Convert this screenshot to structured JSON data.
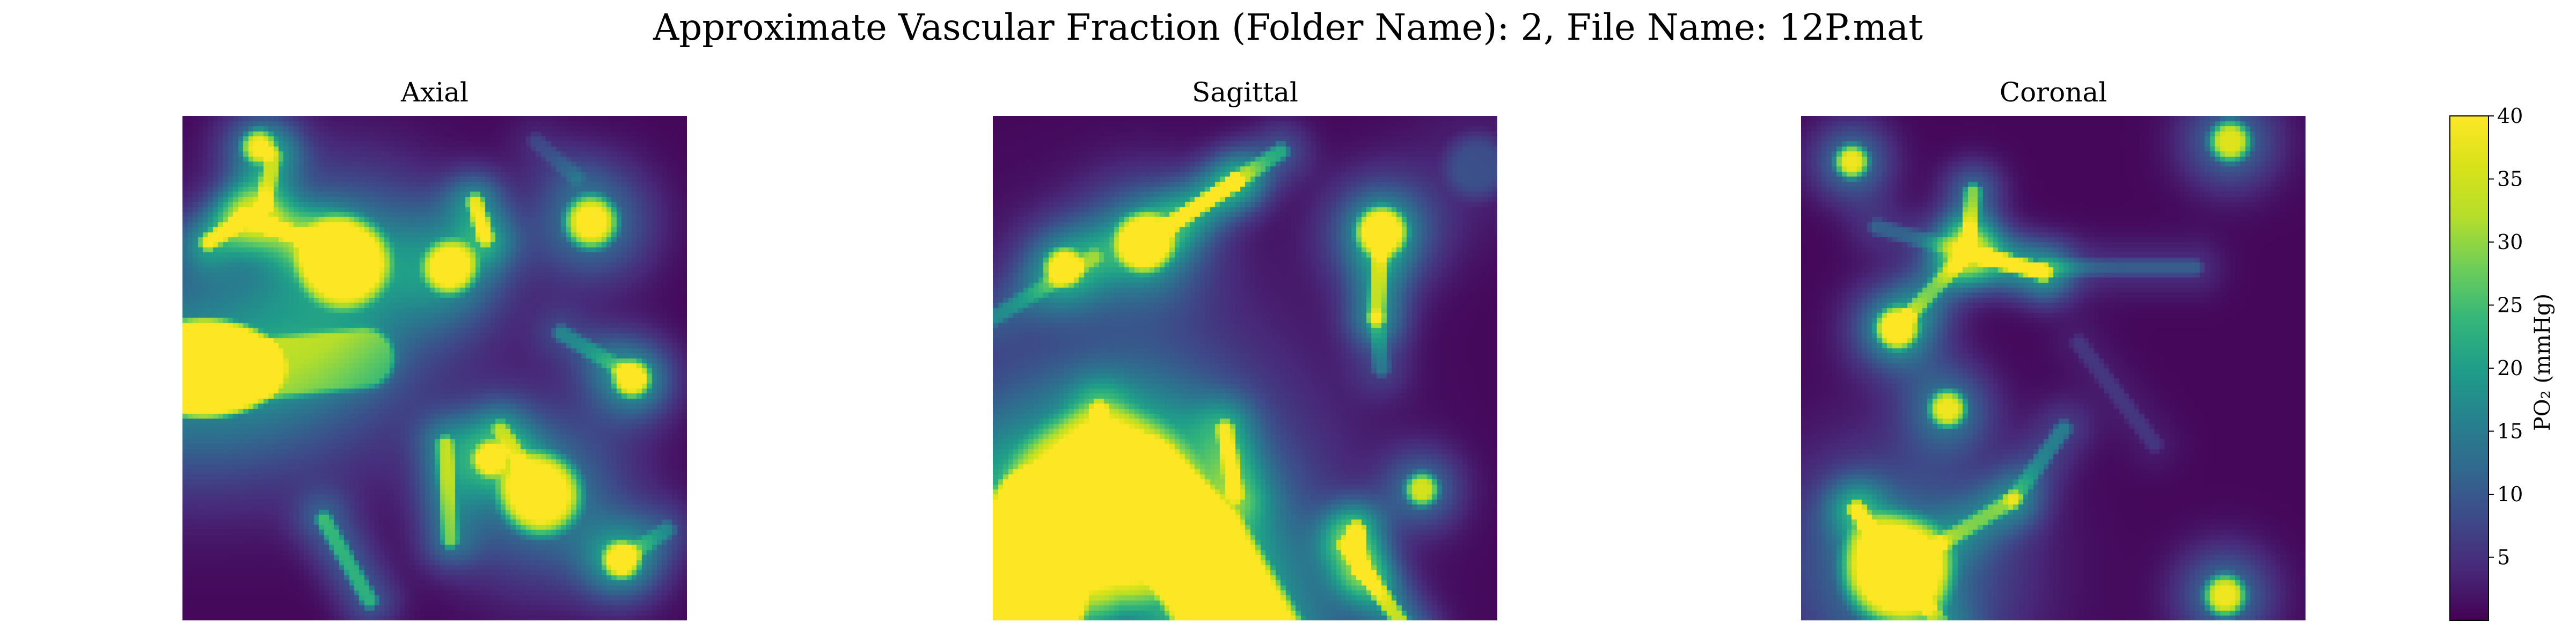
{
  "figure": {
    "suptitle": "Approximate Vascular Fraction (Folder Name): 2, File Name: 12P.mat"
  },
  "chart_data": [
    {
      "type": "heatmap",
      "title": "Axial",
      "colormap": "viridis",
      "vmin": 0,
      "vmax": 40,
      "xlabel": "",
      "ylabel": "",
      "units": "normalized image coordinates [0,1]; intensity = PO2 (mmHg), saturates at 40",
      "features": [
        {
          "shape": "ellipse",
          "cx": 0.04,
          "cy": 0.5,
          "rx": 0.14,
          "ry": 0.085,
          "value": 40
        },
        {
          "shape": "tail",
          "x1": 0.17,
          "y1": 0.5,
          "x2": 0.36,
          "y2": 0.48,
          "value": 14
        },
        {
          "shape": "blob",
          "cx": 0.32,
          "cy": 0.29,
          "r": 0.04,
          "value": 40
        },
        {
          "shape": "segment",
          "x1": 0.12,
          "y1": 0.2,
          "x2": 0.29,
          "y2": 0.26,
          "value": 35
        },
        {
          "shape": "segment",
          "x1": 0.29,
          "y1": 0.26,
          "x2": 0.33,
          "y2": 0.29,
          "value": 35
        },
        {
          "shape": "segment",
          "x1": 0.05,
          "y1": 0.25,
          "x2": 0.13,
          "y2": 0.2,
          "value": 30
        },
        {
          "shape": "segment",
          "x1": 0.18,
          "y1": 0.08,
          "x2": 0.16,
          "y2": 0.18,
          "value": 22
        },
        {
          "shape": "blob",
          "cx": 0.15,
          "cy": 0.06,
          "r": 0.012,
          "value": 32
        },
        {
          "shape": "blob",
          "cx": 0.53,
          "cy": 0.3,
          "r": 0.022,
          "value": 38
        },
        {
          "shape": "blob",
          "cx": 0.81,
          "cy": 0.21,
          "r": 0.022,
          "value": 40
        },
        {
          "shape": "segment",
          "x1": 0.58,
          "y1": 0.17,
          "x2": 0.6,
          "y2": 0.24,
          "value": 32
        },
        {
          "shape": "segment",
          "x1": 0.75,
          "y1": 0.43,
          "x2": 0.9,
          "y2": 0.52,
          "value": 14
        },
        {
          "shape": "blob",
          "cx": 0.89,
          "cy": 0.52,
          "r": 0.014,
          "value": 38
        },
        {
          "shape": "blob",
          "cx": 0.71,
          "cy": 0.75,
          "r": 0.036,
          "value": 40
        },
        {
          "shape": "segment",
          "x1": 0.63,
          "y1": 0.62,
          "x2": 0.71,
          "y2": 0.75,
          "value": 18
        },
        {
          "shape": "segment",
          "x1": 0.52,
          "y1": 0.65,
          "x2": 0.53,
          "y2": 0.84,
          "value": 24
        },
        {
          "shape": "blob",
          "cx": 0.61,
          "cy": 0.68,
          "r": 0.012,
          "value": 36
        },
        {
          "shape": "segment",
          "x1": 0.28,
          "y1": 0.8,
          "x2": 0.37,
          "y2": 0.96,
          "value": 22
        },
        {
          "shape": "blob",
          "cx": 0.87,
          "cy": 0.88,
          "r": 0.014,
          "value": 38
        },
        {
          "shape": "segment",
          "x1": 0.87,
          "y1": 0.88,
          "x2": 0.96,
          "y2": 0.82,
          "value": 12
        },
        {
          "shape": "segment",
          "x1": 0.7,
          "y1": 0.05,
          "x2": 0.78,
          "y2": 0.12,
          "value": 6
        }
      ]
    },
    {
      "type": "heatmap",
      "title": "Sagittal",
      "colormap": "viridis",
      "vmin": 0,
      "vmax": 40,
      "xlabel": "",
      "ylabel": "",
      "units": "normalized image coordinates [0,1]; intensity = PO2 (mmHg), saturates at 40",
      "features": [
        {
          "shape": "arc",
          "points": [
            [
              0.06,
              1.04
            ],
            [
              0.1,
              0.8
            ],
            [
              0.28,
              0.74
            ],
            [
              0.4,
              0.86
            ],
            [
              0.52,
              1.06
            ]
          ],
          "width": 0.17,
          "value": 40
        },
        {
          "shape": "blob",
          "cx": 0.22,
          "cy": 0.78,
          "r": 0.09,
          "value": 40
        },
        {
          "shape": "segment",
          "x1": 0.21,
          "y1": 0.58,
          "x2": 0.22,
          "y2": 0.72,
          "value": 24
        },
        {
          "shape": "segment",
          "x1": 0.46,
          "y1": 0.62,
          "x2": 0.48,
          "y2": 0.75,
          "value": 26
        },
        {
          "shape": "segment",
          "x1": 0.3,
          "y1": 0.25,
          "x2": 0.48,
          "y2": 0.13,
          "value": 36
        },
        {
          "shape": "segment",
          "x1": 0.48,
          "y1": 0.13,
          "x2": 0.57,
          "y2": 0.07,
          "value": 20
        },
        {
          "shape": "blob",
          "cx": 0.3,
          "cy": 0.25,
          "r": 0.024,
          "value": 40
        },
        {
          "shape": "segment",
          "x1": 0.0,
          "y1": 0.4,
          "x2": 0.2,
          "y2": 0.28,
          "value": 12
        },
        {
          "shape": "blob",
          "cx": 0.14,
          "cy": 0.3,
          "r": 0.014,
          "value": 38
        },
        {
          "shape": "blob",
          "cx": 0.77,
          "cy": 0.23,
          "r": 0.02,
          "value": 40
        },
        {
          "shape": "segment",
          "x1": 0.77,
          "y1": 0.23,
          "x2": 0.76,
          "y2": 0.4,
          "value": 26
        },
        {
          "shape": "segment",
          "x1": 0.76,
          "y1": 0.4,
          "x2": 0.77,
          "y2": 0.5,
          "value": 12
        },
        {
          "shape": "segment",
          "x1": 0.7,
          "y1": 0.85,
          "x2": 0.82,
          "y2": 1.02,
          "value": 30
        },
        {
          "shape": "segment",
          "x1": 0.72,
          "y1": 0.82,
          "x2": 0.73,
          "y2": 0.9,
          "value": 36
        },
        {
          "shape": "blob",
          "cx": 0.85,
          "cy": 0.74,
          "r": 0.012,
          "value": 34
        },
        {
          "shape": "blob",
          "cx": 0.96,
          "cy": 0.1,
          "r": 0.03,
          "value": 8
        }
      ]
    },
    {
      "type": "heatmap",
      "title": "Coronal",
      "colormap": "viridis",
      "vmin": 0,
      "vmax": 40,
      "xlabel": "",
      "ylabel": "",
      "units": "normalized image coordinates [0,1]; intensity = PO2 (mmHg), saturates at 40",
      "features": [
        {
          "shape": "segment",
          "x1": 0.33,
          "y1": 0.27,
          "x2": 0.48,
          "y2": 0.31,
          "value": 40
        },
        {
          "shape": "segment",
          "x1": 0.33,
          "y1": 0.27,
          "x2": 0.34,
          "y2": 0.15,
          "value": 28
        },
        {
          "shape": "segment",
          "x1": 0.33,
          "y1": 0.27,
          "x2": 0.19,
          "y2": 0.42,
          "value": 22
        },
        {
          "shape": "segment",
          "x1": 0.48,
          "y1": 0.3,
          "x2": 0.78,
          "y2": 0.3,
          "value": 10
        },
        {
          "shape": "segment",
          "x1": 0.33,
          "y1": 0.27,
          "x2": 0.15,
          "y2": 0.22,
          "value": 10
        },
        {
          "shape": "blob",
          "cx": 0.19,
          "cy": 0.42,
          "r": 0.016,
          "value": 38
        },
        {
          "shape": "blob",
          "cx": 0.1,
          "cy": 0.09,
          "r": 0.012,
          "value": 38
        },
        {
          "shape": "blob",
          "cx": 0.85,
          "cy": 0.05,
          "r": 0.016,
          "value": 36
        },
        {
          "shape": "blob",
          "cx": 0.29,
          "cy": 0.58,
          "r": 0.014,
          "value": 36
        },
        {
          "shape": "blob",
          "cx": 0.19,
          "cy": 0.9,
          "r": 0.05,
          "value": 40
        },
        {
          "shape": "segment",
          "x1": 0.11,
          "y1": 0.78,
          "x2": 0.19,
          "y2": 0.9,
          "value": 36
        },
        {
          "shape": "segment",
          "x1": 0.19,
          "y1": 0.9,
          "x2": 0.42,
          "y2": 0.76,
          "value": 20
        },
        {
          "shape": "segment",
          "x1": 0.42,
          "y1": 0.76,
          "x2": 0.52,
          "y2": 0.62,
          "value": 14
        },
        {
          "shape": "segment",
          "x1": 0.19,
          "y1": 0.9,
          "x2": 0.29,
          "y2": 1.02,
          "value": 18
        },
        {
          "shape": "blob",
          "cx": 0.84,
          "cy": 0.95,
          "r": 0.016,
          "value": 38
        },
        {
          "shape": "segment",
          "x1": 0.55,
          "y1": 0.45,
          "x2": 0.7,
          "y2": 0.65,
          "value": 5
        }
      ]
    }
  ],
  "colorbar": {
    "colormap": "viridis",
    "min": 0,
    "max": 40,
    "ticks": [
      {
        "value": 5,
        "label": "5"
      },
      {
        "value": 10,
        "label": "10"
      },
      {
        "value": 15,
        "label": "15"
      },
      {
        "value": 20,
        "label": "20"
      },
      {
        "value": 25,
        "label": "25"
      },
      {
        "value": 30,
        "label": "30"
      },
      {
        "value": 35,
        "label": "35"
      },
      {
        "value": 40,
        "label": "40"
      }
    ],
    "label": "PO₂ (mmHg)"
  },
  "colors": {
    "viridis_low": "#440154",
    "viridis_mid": "#21918c",
    "viridis_high": "#fde725"
  }
}
